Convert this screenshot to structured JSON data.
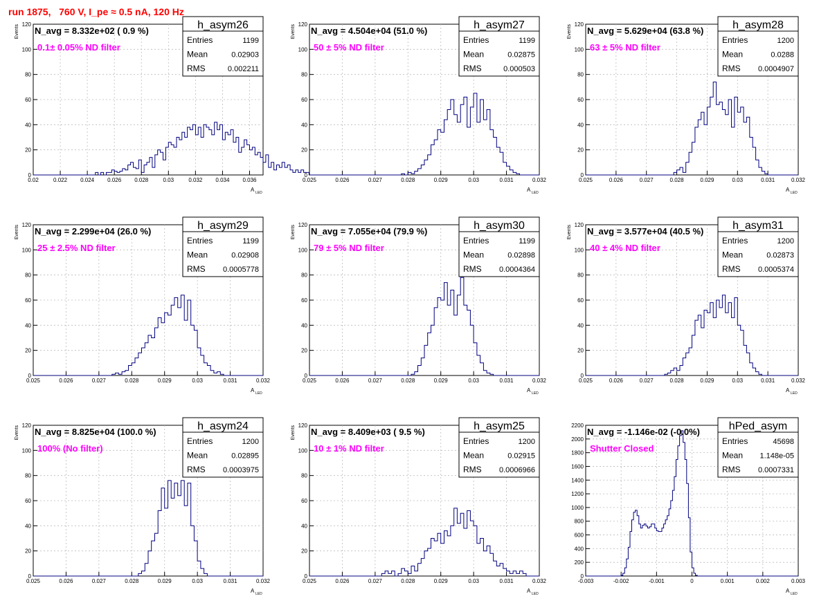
{
  "header": {
    "run_title": "run 1875,   760 V, I_pe ≈ 0.5 nA, 120 Hz"
  },
  "colors": {
    "histogram": "#00007f",
    "annotation": "#ff00ff",
    "run_title": "#ff0000",
    "grid": "#bbbbbb"
  },
  "chart_data": [
    {
      "type": "bar",
      "name": "h_asym26",
      "nlabel": "N_avg = 8.332e+02 ( 0.9 %)",
      "filter": "0.1± 0.05% ND filter",
      "stats": {
        "entries_label": "Entries",
        "entries": "1199",
        "mean_label": "Mean",
        "mean": "0.02903",
        "rms_label": "RMS",
        "rms": "0.002211"
      },
      "xlabel": "A",
      "xlabel_sub": "LED",
      "ylabel": "Events",
      "xlim": [
        0.02,
        0.037
      ],
      "ylim": [
        0,
        120
      ],
      "xticks": [
        "0.02",
        "0.022",
        "0.024",
        "0.026",
        "0.028",
        "0.03",
        "0.032",
        "0.034",
        "0.036"
      ],
      "yticks": [
        "0",
        "20",
        "40",
        "60",
        "80",
        "100",
        "120"
      ],
      "bin_start": 0.02,
      "bin_width": 0.0002,
      "values": [
        0,
        0,
        0,
        0,
        0,
        0,
        0,
        0,
        0,
        0,
        0,
        0,
        0,
        0,
        0,
        0,
        0,
        0,
        0,
        0,
        0,
        0,
        0,
        2,
        0,
        2,
        0,
        2,
        2,
        4,
        3,
        2,
        3,
        5,
        4,
        8,
        10,
        6,
        5,
        12,
        2,
        8,
        10,
        14,
        6,
        16,
        20,
        18,
        12,
        22,
        26,
        24,
        22,
        30,
        28,
        34,
        30,
        38,
        36,
        40,
        32,
        38,
        30,
        40,
        38,
        36,
        32,
        42,
        36,
        40,
        28,
        34,
        32,
        36,
        26,
        30,
        18,
        22,
        28,
        24,
        20,
        22,
        16,
        18,
        14,
        10,
        16,
        6,
        10,
        4,
        8,
        6,
        10,
        6,
        8,
        4,
        2,
        4,
        2,
        4,
        2,
        2,
        0,
        2,
        0,
        2,
        0,
        0,
        0,
        0,
        0,
        0,
        0,
        0,
        0,
        0,
        0,
        0,
        0,
        0,
        0,
        0,
        0,
        0,
        0,
        0,
        0,
        0,
        0,
        0,
        0
      ]
    },
    {
      "type": "bar",
      "name": "h_asym27",
      "nlabel": "N_avg = 4.504e+04 (51.0 %)",
      "filter": "50 ± 5% ND filter",
      "stats": {
        "entries_label": "Entries",
        "entries": "1199",
        "mean_label": "Mean",
        "mean": "0.02875",
        "rms_label": "RMS",
        "rms": "0.000503"
      },
      "xlabel": "A",
      "xlabel_sub": "LED",
      "ylabel": "Events",
      "xlim": [
        0.025,
        0.032
      ],
      "ylim": [
        0,
        120
      ],
      "xticks": [
        "0.025",
        "0.026",
        "0.027",
        "0.028",
        "0.029",
        "0.03",
        "0.031",
        "0.032"
      ],
      "yticks": [
        "0",
        "20",
        "40",
        "60",
        "80",
        "100",
        "120"
      ],
      "bin_start": 0.025,
      "bin_width": 0.0001,
      "values": [
        0,
        0,
        0,
        0,
        0,
        0,
        0,
        0,
        0,
        0,
        0,
        0,
        0,
        0,
        0,
        0,
        0,
        0,
        0,
        0,
        0,
        0,
        0,
        0,
        0,
        0,
        0,
        0,
        1,
        0,
        2,
        1,
        3,
        5,
        8,
        12,
        16,
        24,
        28,
        36,
        34,
        44,
        52,
        60,
        48,
        42,
        56,
        62,
        38,
        54,
        65,
        42,
        60,
        44,
        52,
        36,
        30,
        22,
        18,
        10,
        7,
        4,
        2,
        1,
        0,
        0,
        0,
        0,
        0,
        0
      ]
    },
    {
      "type": "bar",
      "name": "h_asym28",
      "nlabel": "N_avg = 5.629e+04 (63.8 %)",
      "filter": "63 ± 5% ND filter",
      "stats": {
        "entries_label": "Entries",
        "entries": "1200",
        "mean_label": "Mean",
        "mean": "0.0288",
        "rms_label": "RMS",
        "rms": "0.0004907"
      },
      "xlabel": "A",
      "xlabel_sub": "LED",
      "ylabel": "Events",
      "xlim": [
        0.025,
        0.032
      ],
      "ylim": [
        0,
        120
      ],
      "xticks": [
        "0.025",
        "0.026",
        "0.027",
        "0.028",
        "0.029",
        "0.03",
        "0.031",
        "0.032"
      ],
      "yticks": [
        "0",
        "20",
        "40",
        "60",
        "80",
        "100",
        "120"
      ],
      "bin_start": 0.025,
      "bin_width": 0.0001,
      "values": [
        0,
        0,
        0,
        0,
        0,
        0,
        0,
        0,
        0,
        0,
        0,
        0,
        0,
        0,
        0,
        0,
        0,
        0,
        0,
        0,
        0,
        0,
        0,
        0,
        0,
        0,
        0,
        0,
        0,
        2,
        4,
        6,
        2,
        10,
        18,
        26,
        38,
        44,
        50,
        40,
        54,
        62,
        74,
        56,
        58,
        52,
        48,
        60,
        38,
        62,
        50,
        54,
        42,
        46,
        30,
        22,
        12,
        6,
        3,
        1,
        0,
        0,
        0,
        0,
        0,
        0,
        0,
        0,
        0,
        0
      ]
    },
    {
      "type": "bar",
      "name": "h_asym29",
      "nlabel": "N_avg = 2.299e+04 (26.0 %)",
      "filter": "25 ± 2.5% ND filter",
      "stats": {
        "entries_label": "Entries",
        "entries": "1199",
        "mean_label": "Mean",
        "mean": "0.02908",
        "rms_label": "RMS",
        "rms": "0.0005778"
      },
      "xlabel": "A",
      "xlabel_sub": "LED",
      "ylabel": "Events",
      "xlim": [
        0.025,
        0.032
      ],
      "ylim": [
        0,
        120
      ],
      "xticks": [
        "0.025",
        "0.026",
        "0.027",
        "0.028",
        "0.029",
        "0.03",
        "0.031",
        "0.032"
      ],
      "yticks": [
        "0",
        "20",
        "40",
        "60",
        "80",
        "100",
        "120"
      ],
      "bin_start": 0.025,
      "bin_width": 0.0001,
      "values": [
        0,
        0,
        0,
        0,
        0,
        0,
        0,
        0,
        0,
        0,
        0,
        0,
        0,
        0,
        0,
        0,
        0,
        0,
        0,
        0,
        0,
        0,
        0,
        0,
        1,
        2,
        1,
        3,
        4,
        8,
        10,
        14,
        18,
        22,
        26,
        32,
        30,
        38,
        46,
        42,
        50,
        48,
        56,
        62,
        54,
        64,
        44,
        60,
        40,
        36,
        22,
        16,
        10,
        8,
        4,
        2,
        3,
        1,
        0,
        0,
        0,
        0,
        0,
        0,
        0,
        0,
        0,
        0,
        0,
        0
      ]
    },
    {
      "type": "bar",
      "name": "h_asym30",
      "nlabel": "N_avg = 7.055e+04 (79.9 %)",
      "filter": "79 ± 5% ND filter",
      "stats": {
        "entries_label": "Entries",
        "entries": "1199",
        "mean_label": "Mean",
        "mean": "0.02898",
        "rms_label": "RMS",
        "rms": "0.0004364"
      },
      "xlabel": "A",
      "xlabel_sub": "LED",
      "ylabel": "Events",
      "xlim": [
        0.025,
        0.032
      ],
      "ylim": [
        0,
        120
      ],
      "xticks": [
        "0.025",
        "0.026",
        "0.027",
        "0.028",
        "0.029",
        "0.03",
        "0.031",
        "0.032"
      ],
      "yticks": [
        "0",
        "20",
        "40",
        "60",
        "80",
        "100",
        "120"
      ],
      "bin_start": 0.025,
      "bin_width": 0.0001,
      "values": [
        0,
        0,
        0,
        0,
        0,
        0,
        0,
        0,
        0,
        0,
        0,
        0,
        0,
        0,
        0,
        0,
        0,
        0,
        0,
        0,
        0,
        0,
        0,
        0,
        0,
        0,
        0,
        0,
        0,
        0,
        0,
        1,
        3,
        8,
        14,
        24,
        34,
        40,
        54,
        62,
        60,
        74,
        56,
        68,
        48,
        64,
        78,
        56,
        52,
        40,
        26,
        16,
        10,
        4,
        2,
        1,
        0,
        0,
        0,
        0,
        0,
        0,
        0,
        0,
        0,
        0,
        0,
        0,
        0,
        0
      ]
    },
    {
      "type": "bar",
      "name": "h_asym31",
      "nlabel": "N_avg = 3.577e+04 (40.5 %)",
      "filter": "40 ± 4% ND filter",
      "stats": {
        "entries_label": "Entries",
        "entries": "1200",
        "mean_label": "Mean",
        "mean": "0.02873",
        "rms_label": "RMS",
        "rms": "0.0005374"
      },
      "xlabel": "A",
      "xlabel_sub": "LED",
      "ylabel": "Events",
      "xlim": [
        0.025,
        0.032
      ],
      "ylim": [
        0,
        120
      ],
      "xticks": [
        "0.025",
        "0.026",
        "0.027",
        "0.028",
        "0.029",
        "0.03",
        "0.031",
        "0.032"
      ],
      "yticks": [
        "0",
        "20",
        "40",
        "60",
        "80",
        "100",
        "120"
      ],
      "bin_start": 0.025,
      "bin_width": 0.0001,
      "values": [
        0,
        0,
        0,
        0,
        0,
        0,
        0,
        0,
        0,
        0,
        0,
        0,
        0,
        0,
        0,
        0,
        0,
        0,
        0,
        0,
        0,
        0,
        0,
        0,
        0,
        0,
        1,
        2,
        4,
        6,
        4,
        8,
        14,
        18,
        22,
        32,
        44,
        48,
        38,
        52,
        50,
        58,
        46,
        60,
        54,
        64,
        50,
        58,
        46,
        62,
        40,
        36,
        24,
        18,
        10,
        6,
        3,
        1,
        0,
        0,
        0,
        0,
        0,
        0,
        0,
        0,
        0,
        0,
        0,
        0
      ]
    },
    {
      "type": "bar",
      "name": "h_asym24",
      "nlabel": "N_avg = 8.825e+04 (100.0 %)",
      "filter": "100% (No filter)",
      "stats": {
        "entries_label": "Entries",
        "entries": "1200",
        "mean_label": "Mean",
        "mean": "0.02895",
        "rms_label": "RMS",
        "rms": "0.0003975"
      },
      "xlabel": "A",
      "xlabel_sub": "LED",
      "ylabel": "Events",
      "xlim": [
        0.025,
        0.032
      ],
      "ylim": [
        0,
        120
      ],
      "xticks": [
        "0.025",
        "0.026",
        "0.027",
        "0.028",
        "0.029",
        "0.03",
        "0.031",
        "0.032"
      ],
      "yticks": [
        "0",
        "20",
        "40",
        "60",
        "80",
        "100",
        "120"
      ],
      "bin_start": 0.025,
      "bin_width": 0.0001,
      "values": [
        0,
        0,
        0,
        0,
        0,
        0,
        0,
        0,
        0,
        0,
        0,
        0,
        0,
        0,
        0,
        0,
        0,
        0,
        0,
        0,
        0,
        0,
        0,
        0,
        0,
        0,
        0,
        0,
        0,
        0,
        0,
        0,
        2,
        4,
        10,
        20,
        28,
        34,
        52,
        70,
        54,
        76,
        62,
        74,
        64,
        76,
        56,
        74,
        40,
        28,
        12,
        6,
        2,
        0,
        0,
        0,
        0,
        0,
        0,
        0,
        0,
        0,
        0,
        0,
        0,
        0,
        0,
        0,
        0,
        0
      ]
    },
    {
      "type": "bar",
      "name": "h_asym25",
      "nlabel": "N_avg = 8.409e+03 ( 9.5 %)",
      "filter": "10 ± 1% ND filter",
      "stats": {
        "entries_label": "Entries",
        "entries": "1200",
        "mean_label": "Mean",
        "mean": "0.02915",
        "rms_label": "RMS",
        "rms": "0.0006966"
      },
      "xlabel": "A",
      "xlabel_sub": "LED",
      "ylabel": "Events",
      "xlim": [
        0.025,
        0.032
      ],
      "ylim": [
        0,
        120
      ],
      "xticks": [
        "0.025",
        "0.026",
        "0.027",
        "0.028",
        "0.029",
        "0.03",
        "0.031",
        "0.032"
      ],
      "yticks": [
        "0",
        "20",
        "40",
        "60",
        "80",
        "100",
        "120"
      ],
      "bin_start": 0.025,
      "bin_width": 0.0001,
      "values": [
        0,
        0,
        0,
        0,
        0,
        0,
        0,
        0,
        0,
        0,
        0,
        0,
        0,
        0,
        0,
        0,
        0,
        0,
        0,
        0,
        0,
        0,
        2,
        4,
        2,
        4,
        0,
        2,
        6,
        4,
        2,
        8,
        4,
        10,
        14,
        20,
        22,
        30,
        28,
        34,
        26,
        36,
        32,
        40,
        54,
        42,
        50,
        38,
        52,
        44,
        40,
        26,
        30,
        20,
        24,
        18,
        12,
        8,
        10,
        6,
        4,
        2,
        4,
        2,
        4,
        2,
        0,
        0,
        0,
        0
      ]
    },
    {
      "type": "bar",
      "name": "hPed_asym",
      "nlabel": "N_avg = -1.146e-02 (-0.0%)",
      "filter": "Shutter Closed",
      "stats": {
        "entries_label": "Entries",
        "entries": "45698",
        "mean_label": "Mean",
        "mean": "1.148e-05",
        "rms_label": "RMS",
        "rms": "0.0007331"
      },
      "xlabel": "A",
      "xlabel_sub": "LED",
      "ylabel": "",
      "xlim": [
        -0.003,
        0.003
      ],
      "ylim": [
        0,
        2200
      ],
      "xticks": [
        "-0.003",
        "-0.002",
        "-0.001",
        "0",
        "0.001",
        "0.002",
        "0.003"
      ],
      "yticks": [
        "0",
        "200",
        "400",
        "600",
        "800",
        "1000",
        "1200",
        "1400",
        "1600",
        "1800",
        "2000",
        "2200"
      ],
      "bin_start": -0.003,
      "bin_width": 5e-05,
      "values": [
        0,
        0,
        0,
        0,
        0,
        0,
        0,
        0,
        0,
        0,
        0,
        0,
        0,
        0,
        0,
        0,
        0,
        0,
        0,
        0,
        10,
        40,
        120,
        250,
        420,
        650,
        820,
        930,
        960,
        880,
        760,
        700,
        740,
        760,
        730,
        700,
        720,
        760,
        760,
        700,
        660,
        650,
        650,
        700,
        760,
        820,
        880,
        980,
        1100,
        1250,
        1450,
        1700,
        1900,
        2050,
        2120,
        1950,
        1700,
        1350,
        850,
        350,
        120,
        40,
        10,
        0,
        0,
        0,
        0,
        0,
        0,
        0,
        0,
        0,
        0,
        0,
        0,
        0,
        0,
        0,
        0,
        0,
        0,
        0,
        0,
        0,
        0,
        0,
        0,
        0,
        0,
        0,
        0,
        0,
        0,
        0,
        0,
        0,
        0,
        0,
        0,
        0,
        0,
        0,
        0,
        0,
        0,
        0,
        0,
        0,
        0,
        0,
        0,
        0,
        0,
        0,
        0,
        0,
        0,
        0,
        0,
        0
      ]
    }
  ]
}
